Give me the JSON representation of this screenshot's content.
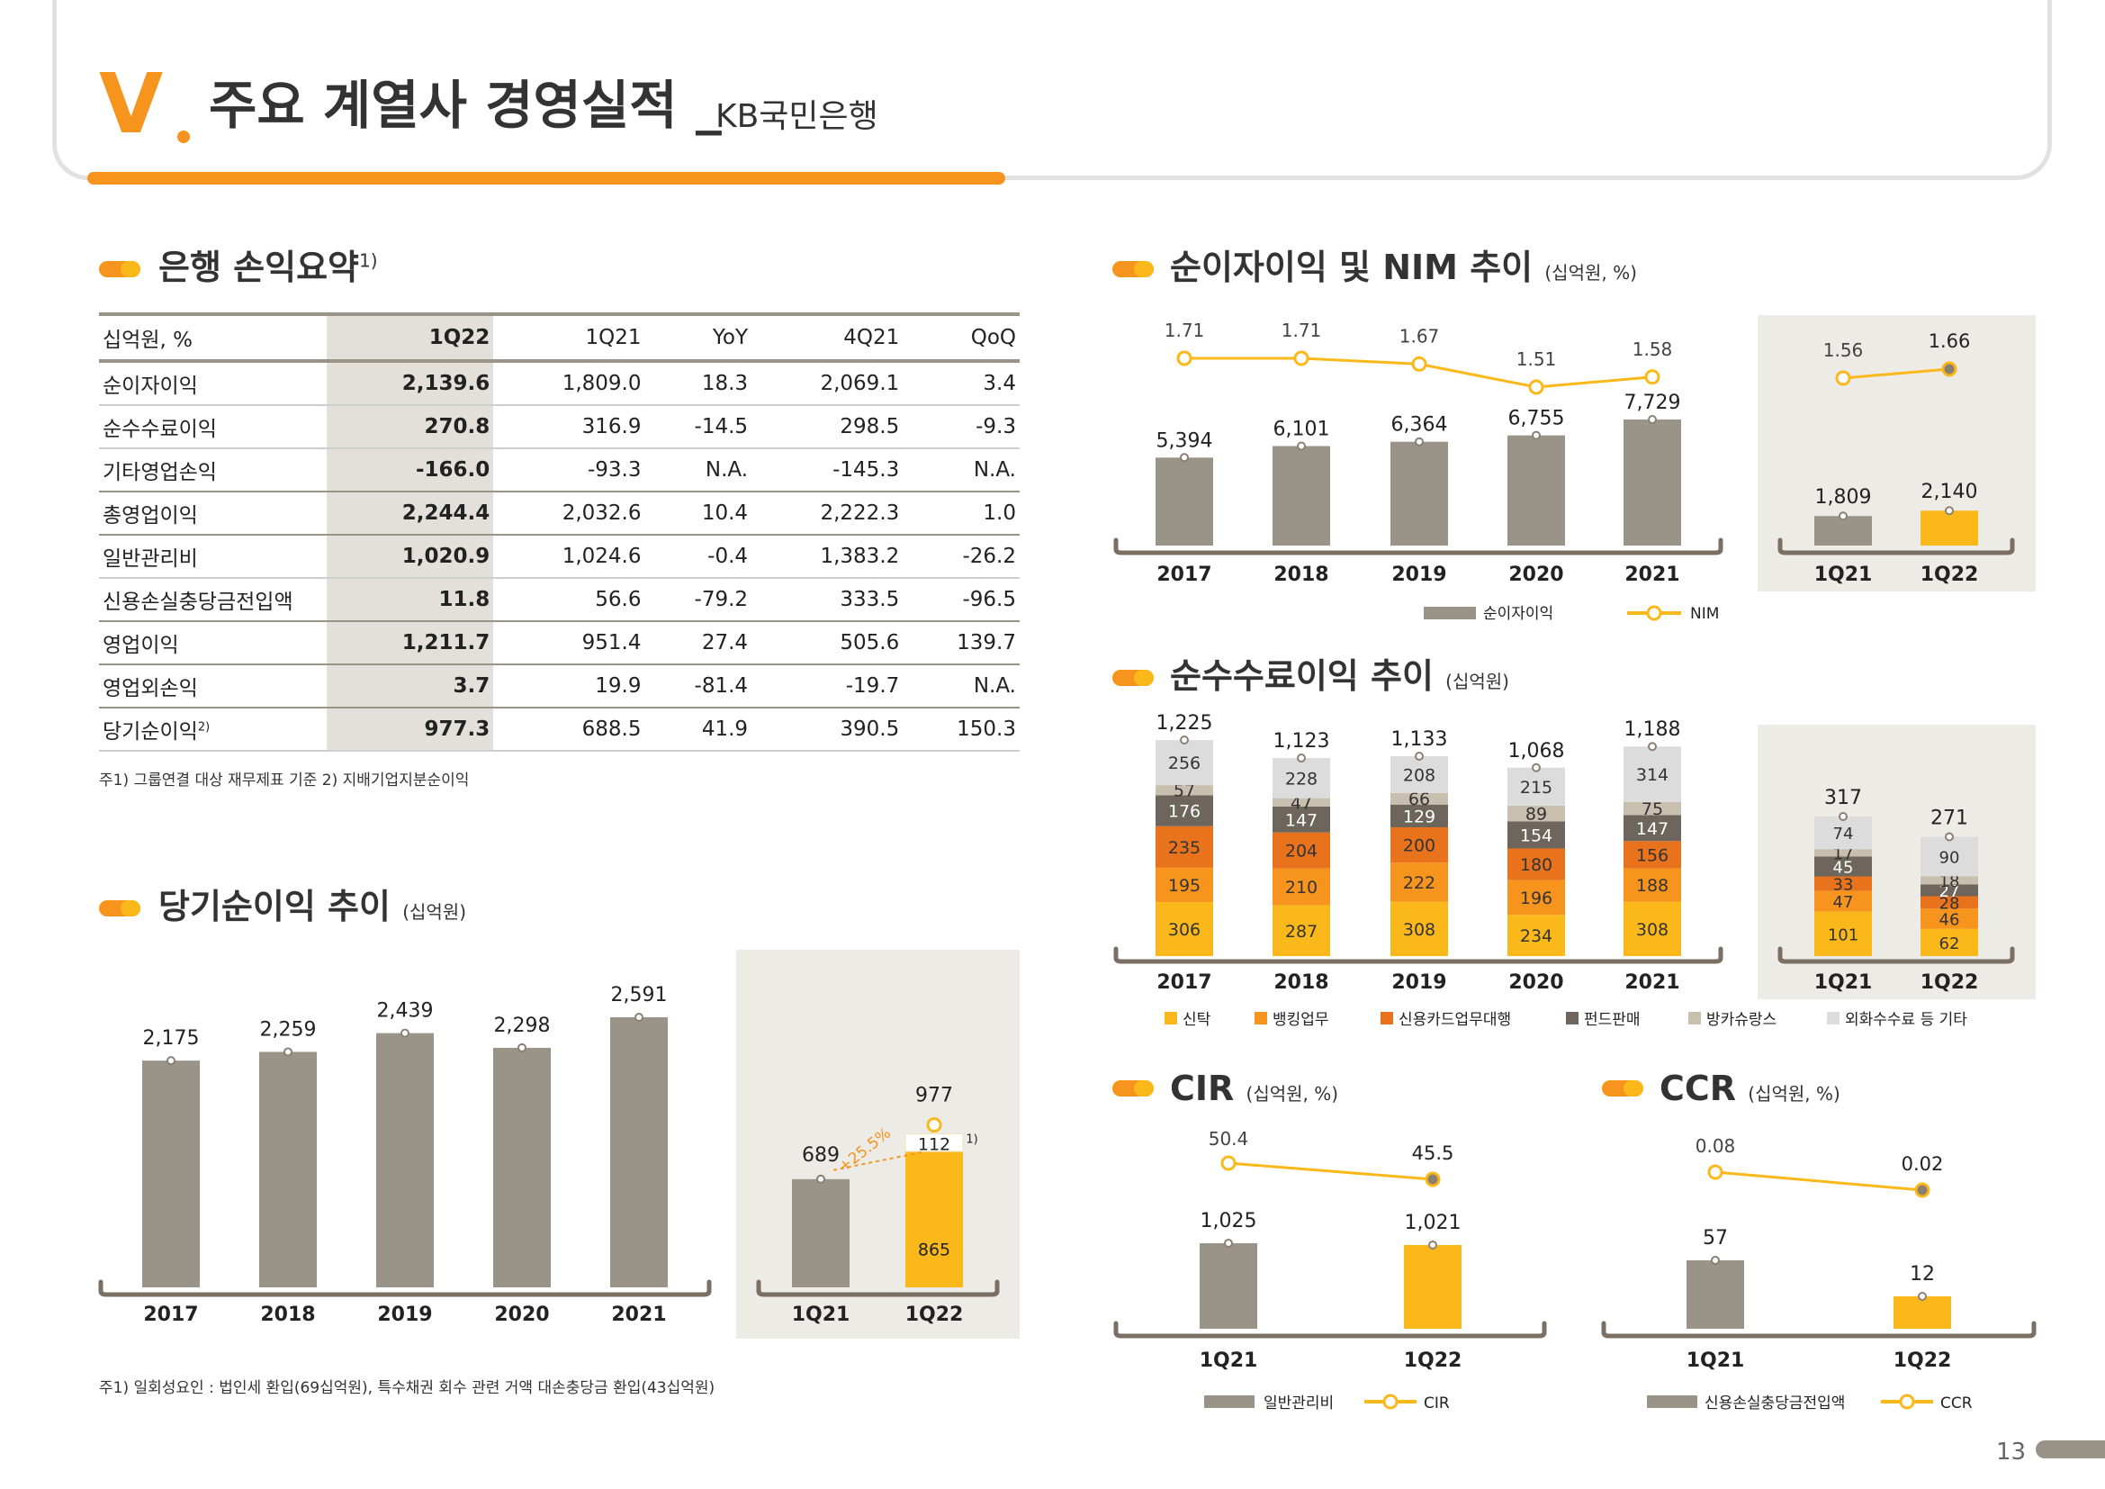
{
  "header": {
    "number": "V",
    "title": "주요 계열사 경영실적",
    "separator": "_",
    "subtitle": "KB국민은행"
  },
  "sections": {
    "summary": {
      "title": "은행 손익요약",
      "sup": "1)"
    },
    "nim": {
      "title": "순이자이익 및 NIM 추이",
      "unit": "(십억원, %)"
    },
    "fee": {
      "title": "순수수료이익 추이",
      "unit": "(십억원)"
    },
    "net": {
      "title": "당기순이익 추이",
      "unit": "(십억원)"
    },
    "cir": {
      "title": "CIR",
      "unit": "(십억원, %)"
    },
    "ccr": {
      "title": "CCR",
      "unit": "(십억원, %)"
    }
  },
  "table": {
    "headers": [
      "십억원, %",
      "1Q22",
      "1Q21",
      "YoY",
      "4Q21",
      "QoQ"
    ],
    "rows": [
      [
        "순이자이익",
        "2,139.6",
        "1,809.0",
        "18.3",
        "2,069.1",
        "3.4"
      ],
      [
        "순수수료이익",
        "270.8",
        "316.9",
        "-14.5",
        "298.5",
        "-9.3"
      ],
      [
        "기타영업손익",
        "-166.0",
        "-93.3",
        "N.A.",
        "-145.3",
        "N.A."
      ],
      [
        "총영업이익",
        "2,244.4",
        "2,032.6",
        "10.4",
        "2,222.3",
        "1.0"
      ],
      [
        "일반관리비",
        "1,020.9",
        "1,024.6",
        "-0.4",
        "1,383.2",
        "-26.2"
      ],
      [
        "신용손실충당금전입액",
        "11.8",
        "56.6",
        "-79.2",
        "333.5",
        "-96.5"
      ],
      [
        "영업이익",
        "1,211.7",
        "951.4",
        "27.4",
        "505.6",
        "139.7"
      ],
      [
        "영업외손익",
        "3.7",
        "19.9",
        "-81.4",
        "-19.7",
        "N.A."
      ],
      [
        "당기순이익",
        "977.3",
        "688.5",
        "41.9",
        "390.5",
        "150.3"
      ]
    ],
    "last_row_sup": "2)"
  },
  "notes": {
    "table": "주1) 그룹연결 대상 재무제표 기준   2) 지배기업지분순이익",
    "net": "주1) 일회성요인 : 법인세 환입(69십억원), 특수채권 회수 관련 거액 대손충당금 환입(43십억원)"
  },
  "colors": {
    "gray": "#9a9388",
    "yellow": "#fbb81a",
    "orange": "#f7941d",
    "panel": "#edebe6",
    "dark_orange": "#e8731c",
    "mid_orange": "#f08a2b",
    "dark_gray": "#6e665c",
    "beige": "#c9bfae",
    "light_gray": "#dcdcdc"
  },
  "chart_data": [
    {
      "id": "nim",
      "type": "bar",
      "categories": [
        "2017",
        "2018",
        "2019",
        "2020",
        "2021"
      ],
      "series": [
        {
          "name": "순이자이익",
          "values": [
            5394,
            6101,
            6364,
            6755,
            7729
          ]
        }
      ],
      "labels": [
        "5,394",
        "6,101",
        "6,364",
        "6,755",
        "7,729"
      ],
      "line": {
        "name": "NIM",
        "values": [
          1.71,
          1.71,
          1.67,
          1.51,
          1.58
        ],
        "labels": [
          "1.71",
          "1.71",
          "1.67",
          "1.51",
          "1.58"
        ]
      },
      "panel": {
        "categories": [
          "1Q21",
          "1Q22"
        ],
        "values": [
          1809,
          2140
        ],
        "labels": [
          "1,809",
          "2,140"
        ],
        "line_values": [
          1.56,
          1.66
        ],
        "line_labels": [
          "1.56",
          "1.66"
        ]
      },
      "legend": [
        "순이자이익",
        "NIM"
      ]
    },
    {
      "id": "fee",
      "type": "bar",
      "categories": [
        "2017",
        "2018",
        "2019",
        "2020",
        "2021"
      ],
      "series": [
        {
          "name": "신탁",
          "values": [
            306,
            287,
            308,
            234,
            308
          ]
        },
        {
          "name": "뱅킹업무",
          "values": [
            195,
            210,
            222,
            196,
            188
          ]
        },
        {
          "name": "신용카드업무대행",
          "values": [
            235,
            204,
            200,
            180,
            156
          ]
        },
        {
          "name": "펀드판매",
          "values": [
            176,
            147,
            129,
            154,
            147
          ]
        },
        {
          "name": "방카슈랑스",
          "values": [
            57,
            47,
            66,
            89,
            75
          ]
        },
        {
          "name": "외화수수료 등 기타",
          "values": [
            256,
            228,
            208,
            215,
            314
          ]
        }
      ],
      "totals": [
        "1,225",
        "1,123",
        "1,133",
        "1,068",
        "1,188"
      ],
      "panel": {
        "categories": [
          "1Q21",
          "1Q22"
        ],
        "series_values": [
          [
            101,
            62
          ],
          [
            47,
            46
          ],
          [
            33,
            28
          ],
          [
            45,
            27
          ],
          [
            17,
            18
          ],
          [
            74,
            90
          ]
        ],
        "totals": [
          "317",
          "271"
        ]
      }
    },
    {
      "id": "net",
      "type": "bar",
      "categories": [
        "2017",
        "2018",
        "2019",
        "2020",
        "2021"
      ],
      "values": [
        2175,
        2259,
        2439,
        2298,
        2591
      ],
      "labels": [
        "2,175",
        "2,259",
        "2,439",
        "2,298",
        "2,591"
      ],
      "panel": {
        "categories": [
          "1Q21",
          "1Q22"
        ],
        "values": [
          689,
          977
        ],
        "labels": [
          "689",
          "977"
        ],
        "split": {
          "base": 865,
          "onetime": 112,
          "base_label": "865",
          "onetime_label": "112",
          "sup": "1)"
        },
        "growth": "+25.5%"
      }
    },
    {
      "id": "cir",
      "type": "bar",
      "categories": [
        "1Q21",
        "1Q22"
      ],
      "values": [
        1025,
        1021
      ],
      "labels": [
        "1,025",
        "1,021"
      ],
      "line": {
        "name": "CIR",
        "values": [
          50.4,
          45.5
        ],
        "labels": [
          "50.4",
          "45.5"
        ]
      },
      "legend": [
        "일반관리비",
        "CIR"
      ]
    },
    {
      "id": "ccr",
      "type": "bar",
      "categories": [
        "1Q21",
        "1Q22"
      ],
      "values": [
        57,
        12
      ],
      "labels": [
        "57",
        "12"
      ],
      "line": {
        "name": "CCR",
        "values": [
          0.08,
          0.02
        ],
        "labels": [
          "0.08",
          "0.02"
        ]
      },
      "legend": [
        "신용손실충당금전입액",
        "CCR"
      ]
    }
  ],
  "page_number": "13"
}
